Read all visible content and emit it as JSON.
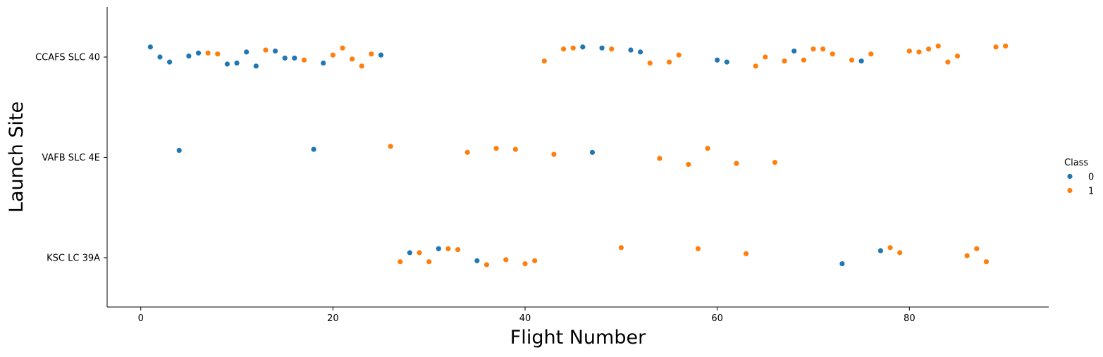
{
  "chart_data": {
    "type": "scatter",
    "xlabel": "Flight Number",
    "ylabel": "Launch Site",
    "categories": [
      "CCAFS SLC 40",
      "VAFB SLC 4E",
      "KSC LC 39A"
    ],
    "xlim": [
      -3.5,
      94.5
    ],
    "xticks": [
      0,
      20,
      40,
      60,
      80
    ],
    "legend": {
      "title": "Class",
      "placement": "right",
      "entries": [
        {
          "label": "0",
          "color": "#1f77b4"
        },
        {
          "label": "1",
          "color": "#ff7f0e"
        }
      ]
    },
    "colors": {
      "0": "#1f77b4",
      "1": "#ff7f0e"
    },
    "points": [
      {
        "x": 1,
        "site": "CCAFS SLC 40",
        "class": 0,
        "jitter": 0.1
      },
      {
        "x": 2,
        "site": "CCAFS SLC 40",
        "class": 0,
        "jitter": 0.0
      },
      {
        "x": 3,
        "site": "CCAFS SLC 40",
        "class": 0,
        "jitter": -0.05
      },
      {
        "x": 5,
        "site": "CCAFS SLC 40",
        "class": 0,
        "jitter": 0.01
      },
      {
        "x": 6,
        "site": "CCAFS SLC 40",
        "class": 0,
        "jitter": 0.04
      },
      {
        "x": 7,
        "site": "CCAFS SLC 40",
        "class": 1,
        "jitter": 0.04
      },
      {
        "x": 8,
        "site": "CCAFS SLC 40",
        "class": 1,
        "jitter": 0.03
      },
      {
        "x": 9,
        "site": "CCAFS SLC 40",
        "class": 0,
        "jitter": -0.07
      },
      {
        "x": 10,
        "site": "CCAFS SLC 40",
        "class": 0,
        "jitter": -0.06
      },
      {
        "x": 11,
        "site": "CCAFS SLC 40",
        "class": 0,
        "jitter": 0.05
      },
      {
        "x": 12,
        "site": "CCAFS SLC 40",
        "class": 0,
        "jitter": -0.09
      },
      {
        "x": 13,
        "site": "CCAFS SLC 40",
        "class": 1,
        "jitter": 0.07
      },
      {
        "x": 14,
        "site": "CCAFS SLC 40",
        "class": 0,
        "jitter": 0.06
      },
      {
        "x": 15,
        "site": "CCAFS SLC 40",
        "class": 0,
        "jitter": -0.01
      },
      {
        "x": 16,
        "site": "CCAFS SLC 40",
        "class": 0,
        "jitter": -0.01
      },
      {
        "x": 17,
        "site": "CCAFS SLC 40",
        "class": 1,
        "jitter": -0.03
      },
      {
        "x": 19,
        "site": "CCAFS SLC 40",
        "class": 0,
        "jitter": -0.06
      },
      {
        "x": 20,
        "site": "CCAFS SLC 40",
        "class": 1,
        "jitter": 0.02
      },
      {
        "x": 21,
        "site": "CCAFS SLC 40",
        "class": 1,
        "jitter": 0.09
      },
      {
        "x": 22,
        "site": "CCAFS SLC 40",
        "class": 1,
        "jitter": -0.02
      },
      {
        "x": 23,
        "site": "CCAFS SLC 40",
        "class": 1,
        "jitter": -0.09
      },
      {
        "x": 24,
        "site": "CCAFS SLC 40",
        "class": 1,
        "jitter": 0.03
      },
      {
        "x": 25,
        "site": "CCAFS SLC 40",
        "class": 0,
        "jitter": 0.02
      },
      {
        "x": 42,
        "site": "CCAFS SLC 40",
        "class": 1,
        "jitter": -0.04
      },
      {
        "x": 44,
        "site": "CCAFS SLC 40",
        "class": 1,
        "jitter": 0.08
      },
      {
        "x": 45,
        "site": "CCAFS SLC 40",
        "class": 1,
        "jitter": 0.09
      },
      {
        "x": 46,
        "site": "CCAFS SLC 40",
        "class": 0,
        "jitter": 0.1
      },
      {
        "x": 48,
        "site": "CCAFS SLC 40",
        "class": 0,
        "jitter": 0.09
      },
      {
        "x": 49,
        "site": "CCAFS SLC 40",
        "class": 1,
        "jitter": 0.08
      },
      {
        "x": 51,
        "site": "CCAFS SLC 40",
        "class": 0,
        "jitter": 0.07
      },
      {
        "x": 52,
        "site": "CCAFS SLC 40",
        "class": 0,
        "jitter": 0.05
      },
      {
        "x": 53,
        "site": "CCAFS SLC 40",
        "class": 1,
        "jitter": -0.06
      },
      {
        "x": 55,
        "site": "CCAFS SLC 40",
        "class": 1,
        "jitter": -0.05
      },
      {
        "x": 56,
        "site": "CCAFS SLC 40",
        "class": 1,
        "jitter": 0.02
      },
      {
        "x": 60,
        "site": "CCAFS SLC 40",
        "class": 0,
        "jitter": -0.03
      },
      {
        "x": 61,
        "site": "CCAFS SLC 40",
        "class": 0,
        "jitter": -0.05
      },
      {
        "x": 64,
        "site": "CCAFS SLC 40",
        "class": 1,
        "jitter": -0.09
      },
      {
        "x": 65,
        "site": "CCAFS SLC 40",
        "class": 1,
        "jitter": 0.0
      },
      {
        "x": 67,
        "site": "CCAFS SLC 40",
        "class": 1,
        "jitter": -0.04
      },
      {
        "x": 68,
        "site": "CCAFS SLC 40",
        "class": 0,
        "jitter": 0.06
      },
      {
        "x": 69,
        "site": "CCAFS SLC 40",
        "class": 1,
        "jitter": -0.03
      },
      {
        "x": 70,
        "site": "CCAFS SLC 40",
        "class": 1,
        "jitter": 0.08
      },
      {
        "x": 71,
        "site": "CCAFS SLC 40",
        "class": 1,
        "jitter": 0.08
      },
      {
        "x": 72,
        "site": "CCAFS SLC 40",
        "class": 1,
        "jitter": 0.03
      },
      {
        "x": 74,
        "site": "CCAFS SLC 40",
        "class": 1,
        "jitter": -0.03
      },
      {
        "x": 75,
        "site": "CCAFS SLC 40",
        "class": 0,
        "jitter": -0.04
      },
      {
        "x": 76,
        "site": "CCAFS SLC 40",
        "class": 1,
        "jitter": 0.03
      },
      {
        "x": 80,
        "site": "CCAFS SLC 40",
        "class": 1,
        "jitter": 0.06
      },
      {
        "x": 81,
        "site": "CCAFS SLC 40",
        "class": 1,
        "jitter": 0.05
      },
      {
        "x": 82,
        "site": "CCAFS SLC 40",
        "class": 1,
        "jitter": 0.08
      },
      {
        "x": 83,
        "site": "CCAFS SLC 40",
        "class": 1,
        "jitter": 0.11
      },
      {
        "x": 84,
        "site": "CCAFS SLC 40",
        "class": 1,
        "jitter": -0.05
      },
      {
        "x": 85,
        "site": "CCAFS SLC 40",
        "class": 1,
        "jitter": 0.01
      },
      {
        "x": 89,
        "site": "CCAFS SLC 40",
        "class": 1,
        "jitter": 0.1
      },
      {
        "x": 90,
        "site": "CCAFS SLC 40",
        "class": 1,
        "jitter": 0.11
      },
      {
        "x": 4,
        "site": "VAFB SLC 4E",
        "class": 0,
        "jitter": 0.07
      },
      {
        "x": 18,
        "site": "VAFB SLC 4E",
        "class": 0,
        "jitter": 0.08
      },
      {
        "x": 26,
        "site": "VAFB SLC 4E",
        "class": 1,
        "jitter": 0.11
      },
      {
        "x": 34,
        "site": "VAFB SLC 4E",
        "class": 1,
        "jitter": 0.05
      },
      {
        "x": 37,
        "site": "VAFB SLC 4E",
        "class": 1,
        "jitter": 0.09
      },
      {
        "x": 39,
        "site": "VAFB SLC 4E",
        "class": 1,
        "jitter": 0.08
      },
      {
        "x": 43,
        "site": "VAFB SLC 4E",
        "class": 1,
        "jitter": 0.03
      },
      {
        "x": 47,
        "site": "VAFB SLC 4E",
        "class": 0,
        "jitter": 0.05
      },
      {
        "x": 54,
        "site": "VAFB SLC 4E",
        "class": 1,
        "jitter": -0.01
      },
      {
        "x": 57,
        "site": "VAFB SLC 4E",
        "class": 1,
        "jitter": -0.07
      },
      {
        "x": 59,
        "site": "VAFB SLC 4E",
        "class": 1,
        "jitter": 0.09
      },
      {
        "x": 62,
        "site": "VAFB SLC 4E",
        "class": 1,
        "jitter": -0.06
      },
      {
        "x": 66,
        "site": "VAFB SLC 4E",
        "class": 1,
        "jitter": -0.05
      },
      {
        "x": 27,
        "site": "KSC LC 39A",
        "class": 1,
        "jitter": -0.04
      },
      {
        "x": 28,
        "site": "KSC LC 39A",
        "class": 0,
        "jitter": 0.05
      },
      {
        "x": 29,
        "site": "KSC LC 39A",
        "class": 1,
        "jitter": 0.05
      },
      {
        "x": 30,
        "site": "KSC LC 39A",
        "class": 1,
        "jitter": -0.04
      },
      {
        "x": 31,
        "site": "KSC LC 39A",
        "class": 0,
        "jitter": 0.09
      },
      {
        "x": 32,
        "site": "KSC LC 39A",
        "class": 1,
        "jitter": 0.09
      },
      {
        "x": 33,
        "site": "KSC LC 39A",
        "class": 1,
        "jitter": 0.08
      },
      {
        "x": 35,
        "site": "KSC LC 39A",
        "class": 0,
        "jitter": -0.03
      },
      {
        "x": 36,
        "site": "KSC LC 39A",
        "class": 1,
        "jitter": -0.07
      },
      {
        "x": 38,
        "site": "KSC LC 39A",
        "class": 1,
        "jitter": -0.02
      },
      {
        "x": 40,
        "site": "KSC LC 39A",
        "class": 1,
        "jitter": -0.06
      },
      {
        "x": 41,
        "site": "KSC LC 39A",
        "class": 1,
        "jitter": -0.03
      },
      {
        "x": 50,
        "site": "KSC LC 39A",
        "class": 1,
        "jitter": 0.1
      },
      {
        "x": 58,
        "site": "KSC LC 39A",
        "class": 1,
        "jitter": 0.09
      },
      {
        "x": 63,
        "site": "KSC LC 39A",
        "class": 1,
        "jitter": 0.04
      },
      {
        "x": 73,
        "site": "KSC LC 39A",
        "class": 0,
        "jitter": -0.06
      },
      {
        "x": 77,
        "site": "KSC LC 39A",
        "class": 0,
        "jitter": 0.07
      },
      {
        "x": 78,
        "site": "KSC LC 39A",
        "class": 1,
        "jitter": 0.1
      },
      {
        "x": 79,
        "site": "KSC LC 39A",
        "class": 1,
        "jitter": 0.05
      },
      {
        "x": 86,
        "site": "KSC LC 39A",
        "class": 1,
        "jitter": 0.02
      },
      {
        "x": 87,
        "site": "KSC LC 39A",
        "class": 1,
        "jitter": 0.09
      },
      {
        "x": 88,
        "site": "KSC LC 39A",
        "class": 1,
        "jitter": -0.04
      }
    ]
  }
}
